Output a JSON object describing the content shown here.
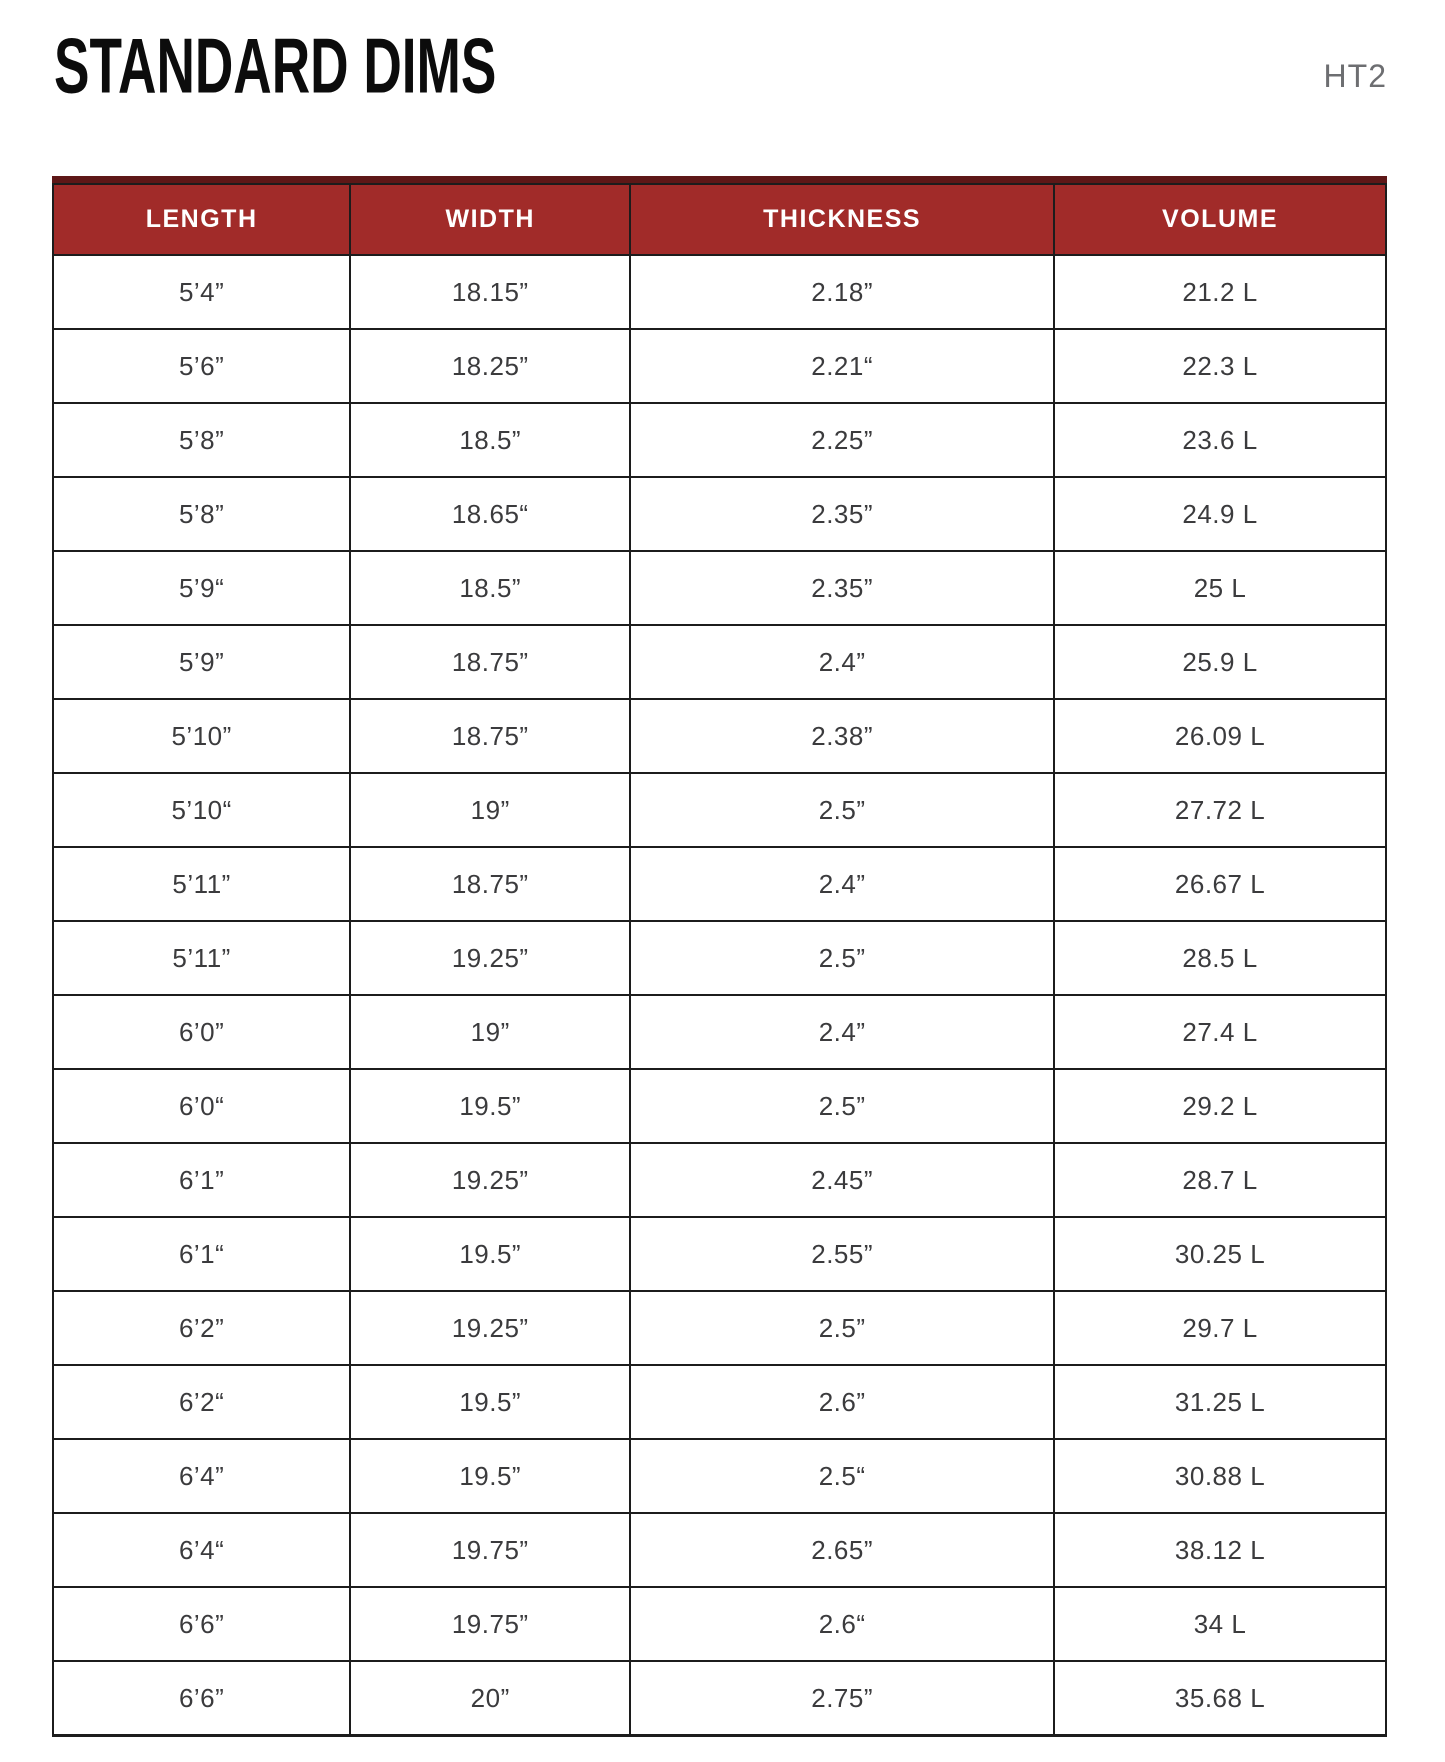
{
  "header": {
    "title": "STANDARD DIMS",
    "doc_code": "HT2"
  },
  "colors": {
    "header_bg": "#A12B29",
    "header_top_strip": "#5E1717",
    "header_text": "#FFFFFF",
    "cell_text": "#3B3B3D",
    "grid_border": "#1C1C1C",
    "doc_code_text": "#6D6E71"
  },
  "table": {
    "columns": [
      "LENGTH",
      "WIDTH",
      "THICKNESS",
      "VOLUME"
    ],
    "rows": [
      [
        "5’4”",
        "18.15”",
        "2.18”",
        "21.2 L"
      ],
      [
        "5’6”",
        "18.25”",
        "2.21“",
        "22.3 L"
      ],
      [
        "5’8”",
        "18.5”",
        "2.25”",
        "23.6 L"
      ],
      [
        "5’8”",
        "18.65“",
        "2.35”",
        "24.9 L"
      ],
      [
        "5’9“",
        "18.5”",
        "2.35”",
        "25 L"
      ],
      [
        "5’9”",
        "18.75”",
        "2.4”",
        "25.9 L"
      ],
      [
        "5’10”",
        "18.75”",
        "2.38”",
        "26.09 L"
      ],
      [
        "5’10“",
        "19”",
        "2.5”",
        "27.72 L"
      ],
      [
        "5’11”",
        "18.75”",
        "2.4”",
        "26.67 L"
      ],
      [
        "5’11”",
        "19.25”",
        "2.5”",
        "28.5 L"
      ],
      [
        "6’0”",
        "19”",
        "2.4”",
        "27.4 L"
      ],
      [
        "6’0“",
        "19.5”",
        "2.5”",
        "29.2 L"
      ],
      [
        "6’1”",
        "19.25”",
        "2.45”",
        "28.7 L"
      ],
      [
        "6’1“",
        "19.5”",
        "2.55”",
        "30.25 L"
      ],
      [
        "6’2”",
        "19.25”",
        "2.5”",
        "29.7 L"
      ],
      [
        "6’2“",
        "19.5”",
        "2.6”",
        "31.25 L"
      ],
      [
        "6’4”",
        "19.5”",
        "2.5“",
        "30.88 L"
      ],
      [
        "6’4“",
        "19.75”",
        "2.65”",
        "38.12 L"
      ],
      [
        "6’6”",
        "19.75”",
        "2.6“",
        "34 L"
      ],
      [
        "6’6”",
        "20”",
        "2.75”",
        "35.68 L"
      ]
    ]
  },
  "chart_data": {
    "type": "table",
    "title": "STANDARD DIMS",
    "columns": [
      "LENGTH",
      "WIDTH",
      "THICKNESS",
      "VOLUME"
    ],
    "volumes_liters": [
      21.2,
      22.3,
      23.6,
      24.9,
      25,
      25.9,
      26.09,
      27.72,
      26.67,
      28.5,
      27.4,
      29.2,
      28.7,
      30.25,
      29.7,
      31.25,
      30.88,
      38.12,
      34,
      35.68
    ]
  }
}
